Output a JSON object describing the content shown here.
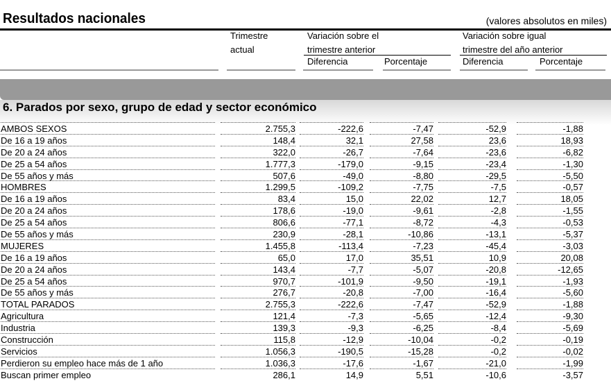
{
  "header": {
    "title": "Resultados nacionales",
    "units": "(valores absolutos en miles)",
    "col_current_1": "Trimestre",
    "col_current_2": "actual",
    "col_prev_1": "Variación sobre el",
    "col_prev_2": "trimestre anterior",
    "col_year_1": "Variación sobre igual",
    "col_year_2": "trimestre del año anterior",
    "diff": "Diferencia",
    "pct": "Porcentaje"
  },
  "section_title": "6. Parados por sexo, grupo de edad y sector económico",
  "rows": [
    {
      "label": "AMBOS SEXOS",
      "v": [
        "2.755,3",
        "-222,6",
        "-7,47",
        "-52,9",
        "-1,88"
      ]
    },
    {
      "label": "De 16 a 19 años",
      "v": [
        "148,4",
        "32,1",
        "27,58",
        "23,6",
        "18,93"
      ]
    },
    {
      "label": "De 20 a 24 años",
      "v": [
        "322,0",
        "-26,7",
        "-7,64",
        "-23,6",
        "-6,82"
      ]
    },
    {
      "label": "De 25 a 54 años",
      "v": [
        "1.777,3",
        "-179,0",
        "-9,15",
        "-23,4",
        "-1,30"
      ]
    },
    {
      "label": "De 55 años y más",
      "v": [
        "507,6",
        "-49,0",
        "-8,80",
        "-29,5",
        "-5,50"
      ]
    },
    {
      "label": "HOMBRES",
      "v": [
        "1.299,5",
        "-109,2",
        "-7,75",
        "-7,5",
        "-0,57"
      ]
    },
    {
      "label": "De 16 a 19 años",
      "v": [
        "83,4",
        "15,0",
        "22,02",
        "12,7",
        "18,05"
      ]
    },
    {
      "label": "De 20 a 24 años",
      "v": [
        "178,6",
        "-19,0",
        "-9,61",
        "-2,8",
        "-1,55"
      ]
    },
    {
      "label": "De 25 a 54 años",
      "v": [
        "806,6",
        "-77,1",
        "-8,72",
        "-4,3",
        "-0,53"
      ]
    },
    {
      "label": "De 55 años y más",
      "v": [
        "230,9",
        "-28,1",
        "-10,86",
        "-13,1",
        "-5,37"
      ]
    },
    {
      "label": "MUJERES",
      "v": [
        "1.455,8",
        "-113,4",
        "-7,23",
        "-45,4",
        "-3,03"
      ]
    },
    {
      "label": "De 16 a 19 años",
      "v": [
        "65,0",
        "17,0",
        "35,51",
        "10,9",
        "20,08"
      ]
    },
    {
      "label": "De 20 a 24 años",
      "v": [
        "143,4",
        "-7,7",
        "-5,07",
        "-20,8",
        "-12,65"
      ]
    },
    {
      "label": "De 25 a 54 años",
      "v": [
        "970,7",
        "-101,9",
        "-9,50",
        "-19,1",
        "-1,93"
      ]
    },
    {
      "label": "De 55 años y más",
      "v": [
        "276,7",
        "-20,8",
        "-7,00",
        "-16,4",
        "-5,60"
      ]
    },
    {
      "label": "TOTAL  PARADOS",
      "v": [
        "2.755,3",
        "-222,6",
        "-7,47",
        "-52,9",
        "-1,88"
      ]
    },
    {
      "label": "Agricultura",
      "v": [
        "121,4",
        "-7,3",
        "-5,65",
        "-12,4",
        "-9,30"
      ]
    },
    {
      "label": "Industria",
      "v": [
        "139,3",
        "-9,3",
        "-6,25",
        "-8,4",
        "-5,69"
      ]
    },
    {
      "label": "Construcción",
      "v": [
        "115,8",
        "-12,9",
        "-10,04",
        "-0,2",
        "-0,19"
      ]
    },
    {
      "label": "Servicios",
      "v": [
        "1.056,3",
        "-190,5",
        "-15,28",
        "-0,2",
        "-0,02"
      ]
    },
    {
      "label": "Perdieron su empleo hace más de 1 año",
      "v": [
        "1.036,3",
        "-17,6",
        "-1,67",
        "-21,0",
        "-1,99"
      ]
    },
    {
      "label": "Buscan primer empleo",
      "v": [
        "286,1",
        "14,9",
        "5,51",
        "-10,6",
        "-3,57"
      ]
    }
  ]
}
